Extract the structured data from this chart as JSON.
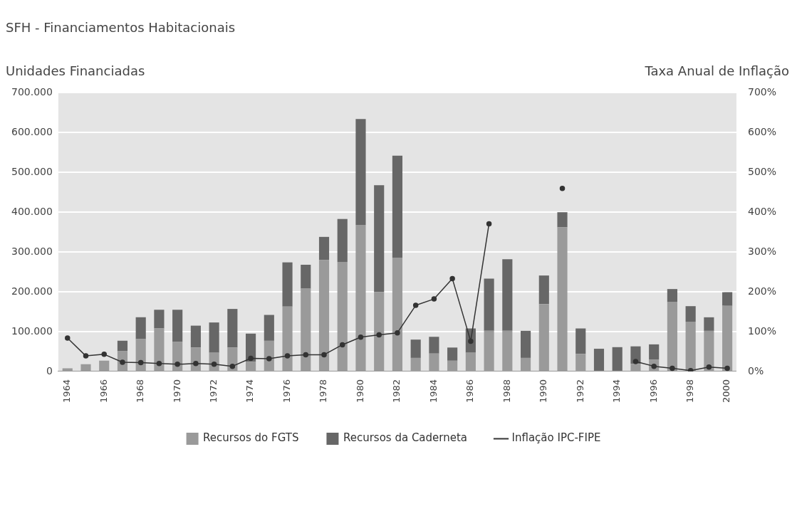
{
  "chart_data": {
    "type": "bar",
    "title": "SFH - Financiamentos Habitacionais",
    "ylabel": "Unidades Financiadas",
    "y2label": "Taxa Anual de Inflação",
    "categories": [
      "1964",
      null,
      "1966",
      null,
      "1968",
      null,
      "1970",
      null,
      "1972",
      null,
      "1974",
      null,
      "1976",
      null,
      "1978",
      null,
      "1980",
      null,
      "1982",
      null,
      "1984",
      null,
      "1986",
      null,
      "1988",
      null,
      "1990",
      null,
      "1992",
      null,
      "1994",
      null,
      "1996",
      null,
      "1998",
      null,
      "2000"
    ],
    "series": [
      {
        "name": "Recursos do FGTS",
        "color": "#9a9a9a",
        "values": [
          8000,
          18000,
          27000,
          51000,
          81000,
          108000,
          74000,
          60000,
          47000,
          60000,
          24000,
          77000,
          163000,
          208000,
          280000,
          275000,
          368000,
          199000,
          286000,
          34000,
          45000,
          27000,
          47000,
          102000,
          102000,
          34000,
          169000,
          362000,
          44000,
          0,
          0,
          19000,
          30000,
          174000,
          125000,
          102000,
          165000
        ]
      },
      {
        "name": "Recursos da Caderneta",
        "color": "#676767",
        "values": [
          0,
          0,
          0,
          26000,
          55000,
          47000,
          81000,
          55000,
          76000,
          97000,
          71000,
          65000,
          111000,
          60000,
          58000,
          108000,
          266000,
          269000,
          256000,
          46000,
          42000,
          33000,
          61000,
          131000,
          180000,
          68000,
          72000,
          38000,
          64000,
          57000,
          61000,
          44000,
          38000,
          33000,
          39000,
          34000,
          34000
        ]
      },
      {
        "name": "Inflação IPC-FIPE",
        "type": "line",
        "axis": "y2",
        "color": "#333333",
        "marker": "circle",
        "values": [
          84,
          39,
          43,
          23,
          22,
          20,
          18,
          20,
          18,
          13,
          33,
          32,
          39,
          42,
          42,
          67,
          86,
          92,
          97,
          166,
          182,
          233,
          76,
          371,
          null,
          null,
          null,
          460,
          null,
          null,
          null,
          25,
          13,
          8,
          2,
          11,
          8
        ]
      }
    ],
    "stacked": true,
    "ylim": [
      0,
      700000
    ],
    "yticks": [
      {
        "value": 0,
        "label": "0"
      },
      {
        "value": 100000,
        "label": "100.000"
      },
      {
        "value": 200000,
        "label": "200.000"
      },
      {
        "value": 300000,
        "label": "300.000"
      },
      {
        "value": 400000,
        "label": "400.000"
      },
      {
        "value": 500000,
        "label": "500.000"
      },
      {
        "value": 600000,
        "label": "600.000"
      },
      {
        "value": 700000,
        "label": "700.000"
      }
    ],
    "y2lim": [
      0,
      700
    ],
    "y2ticks": [
      {
        "value": 0,
        "label": "0%"
      },
      {
        "value": 100,
        "label": "100%"
      },
      {
        "value": 200,
        "label": "200%"
      },
      {
        "value": 300,
        "label": "300%"
      },
      {
        "value": 400,
        "label": "400%"
      },
      {
        "value": 500,
        "label": "500%"
      },
      {
        "value": 600,
        "label": "600%"
      },
      {
        "value": 700,
        "label": "700%"
      }
    ],
    "grid": "y",
    "legend": "bottom"
  }
}
